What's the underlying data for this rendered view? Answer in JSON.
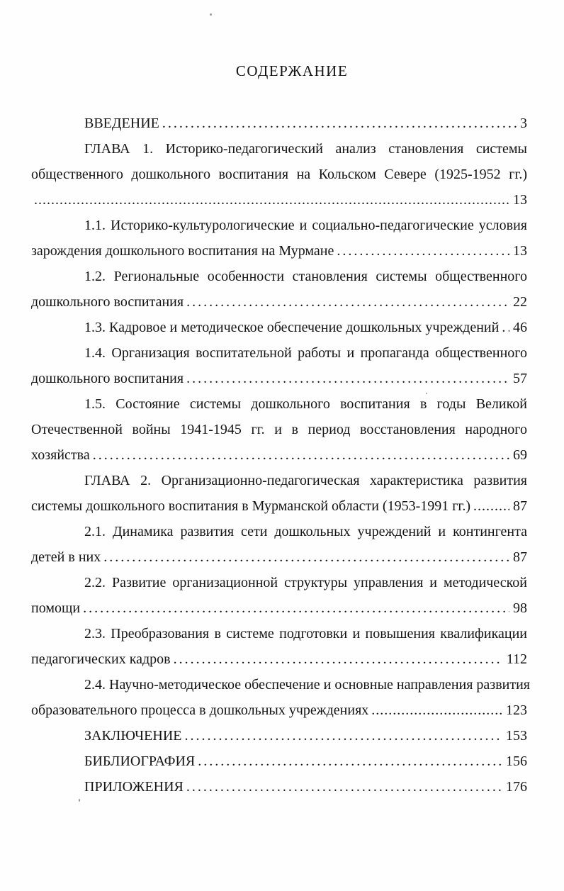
{
  "page": {
    "title": "СОДЕРЖАНИЕ"
  },
  "toc_lines": [
    {
      "text": "ВВЕДЕНИЕ",
      "indent": true,
      "leader": "normal",
      "page": "3",
      "tight": true
    },
    {
      "text": "ГЛАВА 1. Историко-педагогический анализ становления системы",
      "indent": true,
      "justify": true
    },
    {
      "text": "общественного дошкольного воспитания на Кольском Севере (1925-1952 гг.)",
      "justify": true
    },
    {
      "text": "",
      "leader": "dense",
      "page": "13"
    },
    {
      "text": "1.1. Историко-культурологические и социально-педагогические условия",
      "indent": true,
      "justify": true
    },
    {
      "text": "зарождения дошкольного воспитания на Мурмане",
      "leader": "normal",
      "page": "13"
    },
    {
      "text": "1.2. Региональные особенности становления системы общественного",
      "indent": true,
      "justify": true
    },
    {
      "text": "дошкольного воспитания",
      "leader": "normal",
      "page": "22"
    },
    {
      "text": "1.3. Кадровое и методическое обеспечение дошкольных учреждений",
      "indent": true,
      "leader": "normal",
      "page": "46"
    },
    {
      "text": "1.4. Организация воспитательной работы и пропаганда общественного",
      "indent": true,
      "justify": true
    },
    {
      "text": "дошкольного воспитания",
      "leader": "normal",
      "page": "57"
    },
    {
      "text": "1.5. Состояние системы дошкольного воспитания в годы Великой",
      "indent": true,
      "justify": true
    },
    {
      "text": "Отечественной войны 1941-1945 гг. и в период восстановления народного",
      "justify": true
    },
    {
      "text": "хозяйства",
      "leader": "normal",
      "page": "69"
    },
    {
      "text": "ГЛАВА 2. Организационно-педагогическая характеристика развития",
      "indent": true,
      "justify": true
    },
    {
      "text": "системы дошкольного воспитания в Мурманской области (1953-1991 гг.)",
      "leader": "dense",
      "page": "87"
    },
    {
      "text": "2.1. Динамика развития сети дошкольных учреждений и контингента",
      "indent": true,
      "justify": true
    },
    {
      "text": "детей в них",
      "leader": "normal",
      "page": "87"
    },
    {
      "text": "2.2. Развитие организационной структуры управления и методической",
      "indent": true,
      "justify": true
    },
    {
      "text": "помощи",
      "leader": "normal",
      "page": "98"
    },
    {
      "text": "2.3. Преобразования в системе подготовки и повышения квалификации",
      "indent": true,
      "justify": true
    },
    {
      "text": "педагогических кадров",
      "leader": "normal",
      "page": "112"
    },
    {
      "text": "2.4. Научно-методическое обеспечение и основные направления развития",
      "indent": true,
      "justify": true
    },
    {
      "text": "образовательного процесса в дошкольных учреждениях",
      "leader": "dense",
      "page": "123"
    },
    {
      "text": "ЗАКЛЮЧЕНИЕ",
      "indent": true,
      "leader": "normal",
      "page": "153"
    },
    {
      "text": "БИБЛИОГРАФИЯ",
      "indent": true,
      "leader": "normal",
      "page": "156"
    },
    {
      "text": "ПРИЛОЖЕНИЯ",
      "indent": true,
      "leader": "normal",
      "page": "176"
    }
  ]
}
